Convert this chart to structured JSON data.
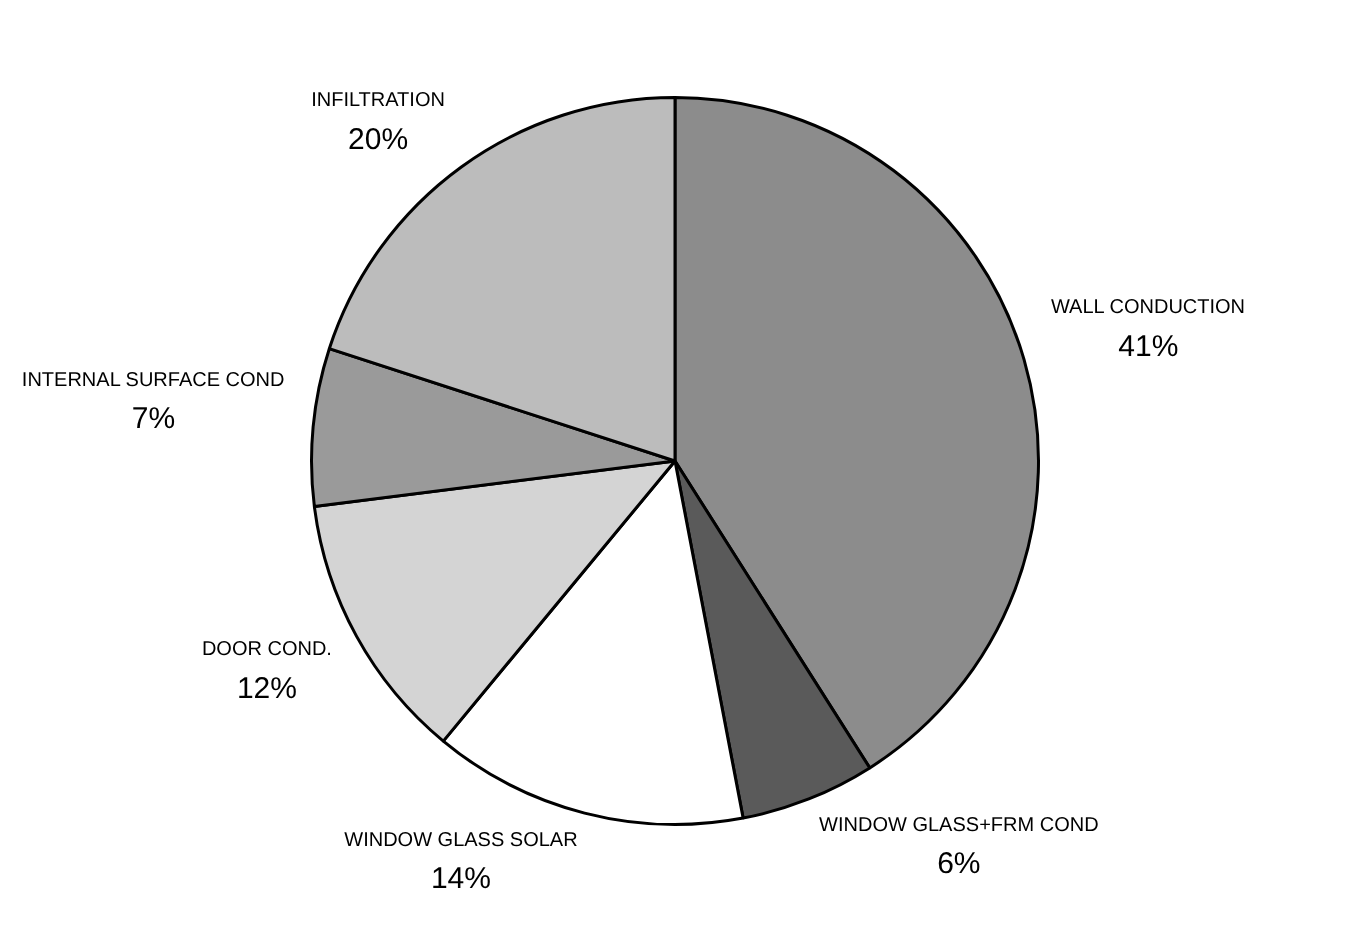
{
  "chart_data": {
    "type": "pie",
    "categories": [
      "WALL CONDUCTION",
      "WINDOW GLASS+FRM COND",
      "WINDOW GLASS SOLAR",
      "DOOR COND.",
      "INTERNAL SURFACE COND",
      "INFILTRATION"
    ],
    "values": [
      41,
      6,
      14,
      12,
      7,
      20
    ],
    "value_labels": [
      "41%",
      "6%",
      "14%",
      "12%",
      "7%",
      "20%"
    ],
    "colors": [
      "#8c8c8c",
      "#5a5a5a",
      "#ffffff",
      "#d4d4d4",
      "#9a9a9a",
      "#bcbcbc"
    ],
    "legend": false
  }
}
